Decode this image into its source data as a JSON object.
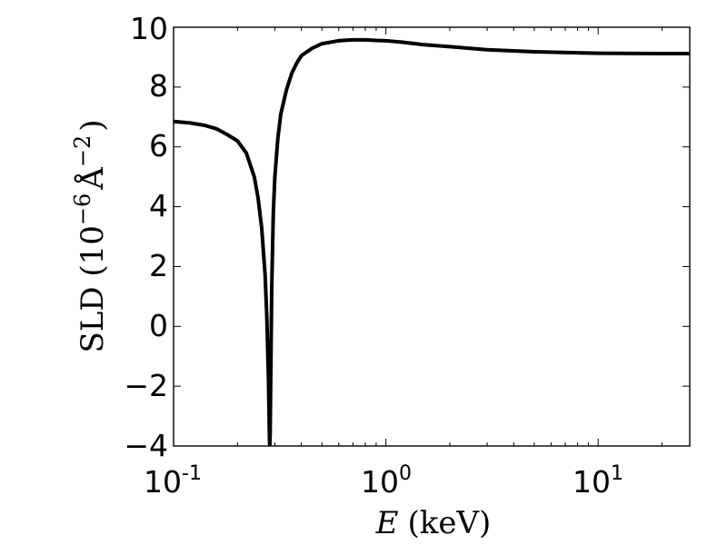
{
  "chart_data": {
    "type": "line",
    "title": "",
    "xscale": "log",
    "xlim": [
      0.1,
      27
    ],
    "ylim": [
      -4,
      10
    ],
    "grid": false,
    "legend": "none",
    "line_color": "#000000",
    "x_ticks": [
      {
        "value": 0.1,
        "base": "10",
        "exp": "-1"
      },
      {
        "value": 1,
        "base": "10",
        "exp": "0"
      },
      {
        "value": 10,
        "base": "10",
        "exp": "1"
      }
    ],
    "y_ticks": [
      {
        "value": -4,
        "label": "−4"
      },
      {
        "value": -2,
        "label": "−2"
      },
      {
        "value": 0,
        "label": "0"
      },
      {
        "value": 2,
        "label": "2"
      },
      {
        "value": 4,
        "label": "4"
      },
      {
        "value": 6,
        "label": "6"
      },
      {
        "value": 8,
        "label": "8"
      },
      {
        "value": 10,
        "label": "10"
      }
    ],
    "xlabel": {
      "symbol": "E",
      "unit": "(keV)"
    },
    "ylabel": {
      "prefix": "SLD (10",
      "exp1": "−6",
      "unit": "Å",
      "exp2": "−2",
      "suffix": ")"
    },
    "series": [
      {
        "x": [
          0.1,
          0.12,
          0.14,
          0.16,
          0.18,
          0.2,
          0.22,
          0.24,
          0.25,
          0.26,
          0.27,
          0.275,
          0.28,
          0.283,
          0.284,
          0.285,
          0.287,
          0.29,
          0.295,
          0.3,
          0.31,
          0.32,
          0.34,
          0.36,
          0.38,
          0.4,
          0.45,
          0.5,
          0.55,
          0.6,
          0.7,
          0.8,
          0.9,
          1.0,
          1.2,
          1.5,
          2,
          3,
          5,
          10,
          20,
          27
        ],
        "y": [
          6.85,
          6.8,
          6.72,
          6.6,
          6.4,
          6.2,
          5.8,
          5.0,
          4.3,
          3.3,
          1.7,
          0.3,
          -1.8,
          -3.8,
          -4.0,
          -3.6,
          -1.6,
          1.3,
          3.8,
          5.0,
          6.3,
          7.1,
          7.9,
          8.45,
          8.8,
          9.05,
          9.3,
          9.45,
          9.5,
          9.55,
          9.58,
          9.58,
          9.56,
          9.55,
          9.5,
          9.42,
          9.35,
          9.25,
          9.18,
          9.13,
          9.12,
          9.12
        ]
      }
    ]
  }
}
